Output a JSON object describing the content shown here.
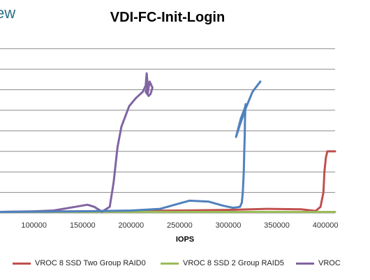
{
  "header_fragment": "ew",
  "chart_data": {
    "type": "line",
    "title": "VDI-FC-Init-Login",
    "xlabel": "IOPS",
    "ylabel": "",
    "xlim": [
      65000,
      410000
    ],
    "ylim": [
      0,
      8.5
    ],
    "xticks": [
      100000,
      150000,
      200000,
      250000,
      300000,
      350000,
      400000
    ],
    "xtick_labels": [
      "100000",
      "150000",
      "200000",
      "250000",
      "300000",
      "350000",
      "400000"
    ],
    "gridlines_y": [
      0,
      1,
      2,
      3,
      4,
      5,
      6,
      7,
      8
    ],
    "grid": "horizontal",
    "legend_position": "bottom",
    "series": [
      {
        "name": "VROC 8 SSD Two Group RAID0",
        "color": "#c0504d",
        "x": [
          65000,
          150000,
          200000,
          250000,
          300000,
          340000,
          375000,
          390000,
          395000,
          398000,
          399000,
          400500,
          402000,
          405000,
          410000
        ],
        "y": [
          0.05,
          0.08,
          0.1,
          0.12,
          0.15,
          0.2,
          0.18,
          0.1,
          0.3,
          1.0,
          2.0,
          2.7,
          3.0,
          3.0,
          3.0
        ]
      },
      {
        "name": "VROC 8 SSD 2 Group RAID5",
        "color": "#9bbb59",
        "x": [
          65000,
          410000
        ],
        "y": [
          0.05,
          0.05
        ]
      },
      {
        "name": "VROC",
        "color": "#8064a2",
        "x": [
          65000,
          100000,
          120000,
          140000,
          155000,
          162000,
          170000,
          178000,
          182000,
          186000,
          190000,
          198000,
          205000,
          212000,
          215000,
          216000,
          217000,
          215000,
          218000,
          220000,
          222000,
          219000,
          217000
        ],
        "y": [
          0.05,
          0.08,
          0.12,
          0.28,
          0.4,
          0.3,
          0.06,
          0.3,
          1.5,
          3.2,
          4.2,
          5.2,
          5.6,
          5.9,
          6.2,
          6.8,
          6.2,
          5.9,
          5.7,
          5.8,
          6.1,
          6.4,
          5.8
        ]
      },
      {
        "name": "",
        "color": "#4f81bd",
        "x": [
          65000,
          150000,
          200000,
          230000,
          245000,
          260000,
          280000,
          295000,
          305000,
          312000,
          314000,
          315000,
          316000,
          316500,
          317000,
          317200,
          317500,
          318000,
          317000,
          313000,
          308000,
          312000,
          318000,
          325000,
          333000
        ],
        "y": [
          0.05,
          0.08,
          0.12,
          0.2,
          0.4,
          0.6,
          0.55,
          0.35,
          0.25,
          0.3,
          0.5,
          1.0,
          2.0,
          3.0,
          3.8,
          4.5,
          5.0,
          5.3,
          5.1,
          4.6,
          3.7,
          4.3,
          5.1,
          5.9,
          6.4
        ]
      }
    ]
  }
}
